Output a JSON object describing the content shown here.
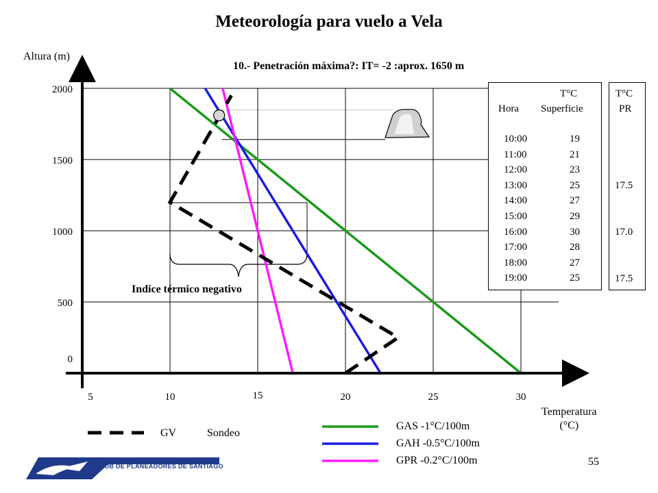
{
  "page": {
    "title": "Meteorología para vuelo a Vela",
    "page_number": "55",
    "negative_index_label": "Indice térmico negativo",
    "logo_text": "CLUB DE PLANEADORES DE SANTIAGO"
  },
  "colors": {
    "gas": "#1a9a1a",
    "gah": "#1a1ae6",
    "gpr": "#ff1aff",
    "sounding": "#000000",
    "logo": "#1f3a8a"
  },
  "table": {
    "header_hora": "Hora",
    "header_temp_line1": "T°C",
    "header_temp_line2": "Superficie",
    "rows": [
      {
        "hora": "10:00",
        "temp": "19"
      },
      {
        "hora": "11:00",
        "temp": "21"
      },
      {
        "hora": "12:00",
        "temp": "23"
      },
      {
        "hora": "13:00",
        "temp": "25"
      },
      {
        "hora": "14:00",
        "temp": "27"
      },
      {
        "hora": "15:00",
        "temp": "29"
      },
      {
        "hora": "16:00",
        "temp": "30"
      },
      {
        "hora": "17:00",
        "temp": "28"
      },
      {
        "hora": "18:00",
        "temp": "27"
      },
      {
        "hora": "19:00",
        "temp": "25"
      }
    ]
  },
  "pr_table": {
    "header_line1": "T°C",
    "header_line2": "PR",
    "values": [
      "17.5",
      "17.0",
      "17.5"
    ]
  },
  "legend": {
    "gv": "GV",
    "sondeo": "Sondeo",
    "gas": "GAS  -1°C/100m",
    "gah": "GAH  -0.5°C/100m",
    "gpr": "GPR  -0.2°C/100m"
  },
  "chart_data": {
    "type": "line",
    "title": "Meteorología para vuelo a Vela",
    "subtitle": "10.- Penetración máxima?: IT= -2 :aprox. 1650 m",
    "xlabel_line1": "Temperatura",
    "xlabel_line2": "(°C)",
    "ylabel": "Altura (m)",
    "xlim": [
      5,
      30
    ],
    "ylim": [
      0,
      2000
    ],
    "x_ticks": [
      "5",
      "10",
      "15",
      "20",
      "25",
      "30"
    ],
    "y_ticks": [
      "0",
      "500",
      "1000",
      "1500",
      "2000"
    ],
    "grid": true,
    "series": [
      {
        "name": "GAS  -1°C/100m",
        "style": "solid",
        "points": [
          [
            30,
            0
          ],
          [
            10,
            2000
          ]
        ]
      },
      {
        "name": "GAH  -0.5°C/100m",
        "style": "solid",
        "points": [
          [
            22,
            0
          ],
          [
            12,
            2000
          ]
        ]
      },
      {
        "name": "GPR  -0.2°C/100m",
        "style": "solid",
        "points": [
          [
            17,
            0
          ],
          [
            13,
            2000
          ]
        ]
      },
      {
        "name": "Sondeo",
        "style": "dashed",
        "points": [
          [
            20,
            0
          ],
          [
            23,
            250
          ],
          [
            10,
            1200
          ],
          [
            13.5,
            1950
          ]
        ]
      }
    ],
    "annotations": {
      "max_penetration_m": 1650,
      "marker_point": [
        12.8,
        1810
      ]
    }
  }
}
